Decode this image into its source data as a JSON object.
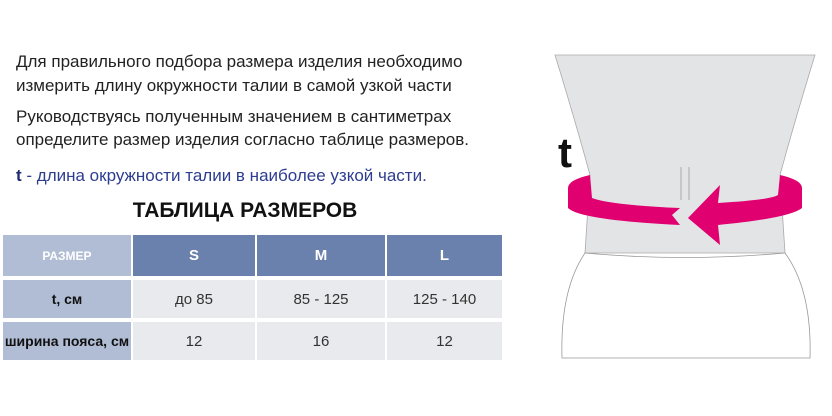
{
  "instructions": [
    "Для правильного подбора размера изделия необходимо",
    "измерить длину окружности талии в самой узкой части",
    "Руководствуясь полученным значением в сантиметрах",
    "определите размер изделия согласно таблице размеров."
  ],
  "legend": {
    "symbol": "t",
    "text": " - длина окружности талии в наиболее узкой части."
  },
  "table": {
    "title": "ТАБЛИЦА РАЗМЕРОВ",
    "header": [
      "РАЗМЕР",
      "S",
      "M",
      "L"
    ],
    "rows": [
      [
        "t, см",
        "до 85",
        "85 - 125",
        "125 - 140"
      ],
      [
        "ширина пояса, см",
        "12",
        "16",
        "12"
      ]
    ]
  },
  "figure": {
    "label": "t",
    "arrow_color": "#e0006f"
  }
}
